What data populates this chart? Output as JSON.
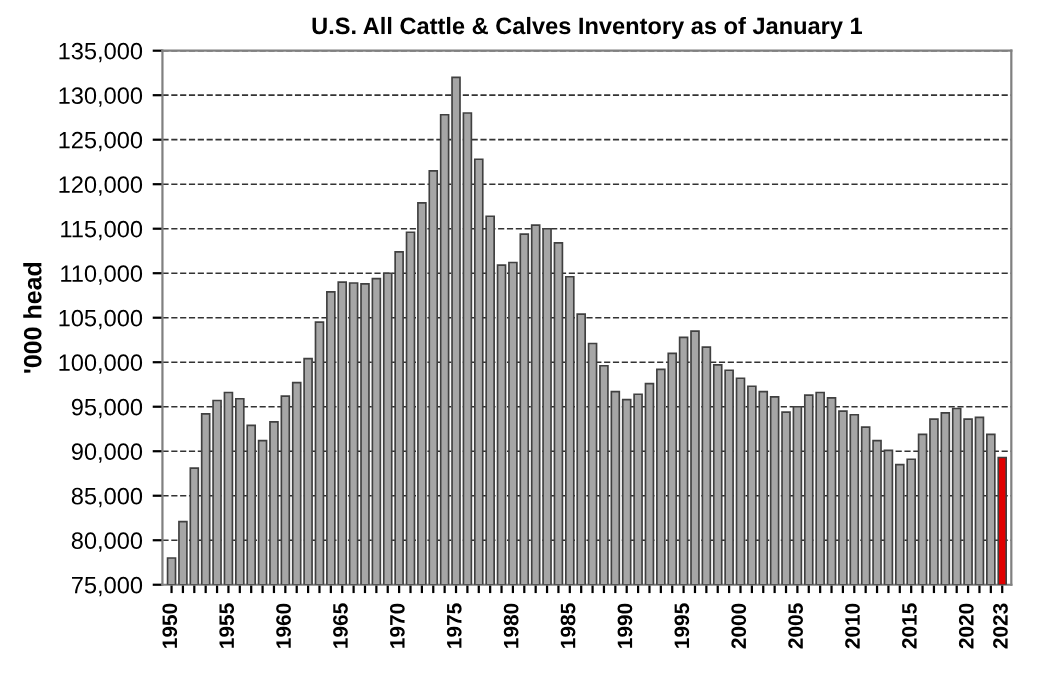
{
  "chart_data": {
    "type": "bar",
    "title": "U.S. All Cattle & Calves Inventory as of January 1",
    "ylabel": "'000 head",
    "categories": [
      "1950",
      null,
      null,
      null,
      null,
      "1955",
      null,
      null,
      null,
      null,
      "1960",
      null,
      null,
      null,
      null,
      "1965",
      null,
      null,
      null,
      null,
      "1970",
      null,
      null,
      null,
      null,
      "1975",
      null,
      null,
      null,
      null,
      "1980",
      null,
      null,
      null,
      null,
      "1985",
      null,
      null,
      null,
      null,
      "1990",
      null,
      null,
      null,
      null,
      "1995",
      null,
      null,
      null,
      null,
      "2000",
      null,
      null,
      null,
      null,
      "2005",
      null,
      null,
      null,
      null,
      "2010",
      null,
      null,
      null,
      null,
      "2015",
      null,
      null,
      null,
      null,
      "2020",
      null,
      null,
      "2023"
    ],
    "values": [
      78000,
      82100,
      88100,
      94200,
      95700,
      96600,
      95900,
      92900,
      91200,
      93300,
      96200,
      97700,
      100400,
      104500,
      107900,
      109000,
      108900,
      108800,
      109400,
      110000,
      112400,
      114600,
      117900,
      121500,
      127800,
      132000,
      128000,
      122800,
      116400,
      110900,
      111200,
      114400,
      115400,
      115000,
      113400,
      109600,
      105400,
      102100,
      99600,
      96700,
      95800,
      96400,
      97600,
      99200,
      101000,
      102800,
      103500,
      101700,
      99700,
      99100,
      98200,
      97300,
      96700,
      96100,
      94400,
      95000,
      96300,
      96600,
      96000,
      94500,
      94100,
      92700,
      91200,
      90100,
      88500,
      89100,
      91900,
      93600,
      94300,
      94800,
      93600,
      93800,
      91900,
      89300
    ],
    "colors": [
      "#a6a6a6",
      "#a6a6a6",
      "#a6a6a6",
      "#a6a6a6",
      "#a6a6a6",
      "#a6a6a6",
      "#a6a6a6",
      "#a6a6a6",
      "#a6a6a6",
      "#a6a6a6",
      "#a6a6a6",
      "#a6a6a6",
      "#a6a6a6",
      "#a6a6a6",
      "#a6a6a6",
      "#a6a6a6",
      "#a6a6a6",
      "#a6a6a6",
      "#a6a6a6",
      "#a6a6a6",
      "#a6a6a6",
      "#a6a6a6",
      "#a6a6a6",
      "#a6a6a6",
      "#a6a6a6",
      "#a6a6a6",
      "#a6a6a6",
      "#a6a6a6",
      "#a6a6a6",
      "#a6a6a6",
      "#a6a6a6",
      "#a6a6a6",
      "#a6a6a6",
      "#a6a6a6",
      "#a6a6a6",
      "#a6a6a6",
      "#a6a6a6",
      "#a6a6a6",
      "#a6a6a6",
      "#a6a6a6",
      "#a6a6a6",
      "#a6a6a6",
      "#a6a6a6",
      "#a6a6a6",
      "#a6a6a6",
      "#a6a6a6",
      "#a6a6a6",
      "#a6a6a6",
      "#a6a6a6",
      "#a6a6a6",
      "#a6a6a6",
      "#a6a6a6",
      "#a6a6a6",
      "#a6a6a6",
      "#a6a6a6",
      "#a6a6a6",
      "#a6a6a6",
      "#a6a6a6",
      "#a6a6a6",
      "#a6a6a6",
      "#a6a6a6",
      "#a6a6a6",
      "#a6a6a6",
      "#a6a6a6",
      "#a6a6a6",
      "#a6a6a6",
      "#a6a6a6",
      "#a6a6a6",
      "#a6a6a6",
      "#a6a6a6",
      "#a6a6a6",
      "#a6a6a6",
      "#a6a6a6",
      "#e00000"
    ],
    "ylim": [
      75000,
      135000
    ],
    "yticks": [
      {
        "value": 75000,
        "label": "75,000"
      },
      {
        "value": 80000,
        "label": "80,000"
      },
      {
        "value": 85000,
        "label": "85,000"
      },
      {
        "value": 90000,
        "label": "90,000"
      },
      {
        "value": 95000,
        "label": "95,000"
      },
      {
        "value": 100000,
        "label": "100,000"
      },
      {
        "value": 105000,
        "label": "105,000"
      },
      {
        "value": 110000,
        "label": "110,000"
      },
      {
        "value": 115000,
        "label": "115,000"
      },
      {
        "value": 120000,
        "label": "120,000"
      },
      {
        "value": 125000,
        "label": "125,000"
      },
      {
        "value": 130000,
        "label": "130,000"
      },
      {
        "value": 135000,
        "label": "135,000"
      }
    ],
    "grid": "y",
    "line_style": "dashed"
  }
}
